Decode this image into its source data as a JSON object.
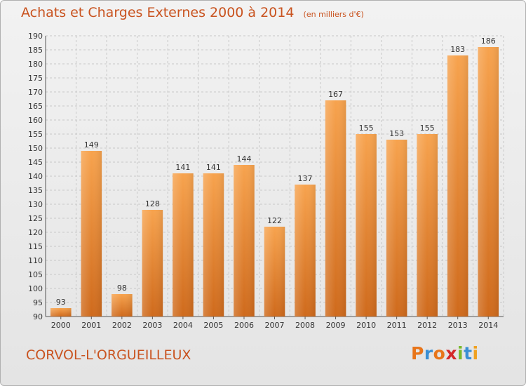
{
  "header": {
    "title": "Achats et Charges Externes 2000 à 2014",
    "subtitle": "(en milliers d'€)"
  },
  "footer": {
    "commune": "CORVOL-L'ORGUEILLEUX",
    "brand": "Proxiti",
    "brand_colors": [
      "#e8751a",
      "#3a8fd4",
      "#e8751a",
      "#d4292a",
      "#7ab92d",
      "#3a8fd4",
      "#f0a11f"
    ]
  },
  "colors": {
    "bar_light": "#f7a34e",
    "bar_dark": "#cf6a1c",
    "title": "#c9531f",
    "axis_text": "#333333",
    "grid": "#c8c8c8"
  },
  "chart_data": {
    "type": "bar",
    "categories": [
      "2000",
      "2001",
      "2002",
      "2003",
      "2004",
      "2005",
      "2006",
      "2007",
      "2008",
      "2009",
      "2010",
      "2011",
      "2012",
      "2013",
      "2014"
    ],
    "values": [
      93,
      149,
      98,
      128,
      141,
      141,
      144,
      122,
      137,
      167,
      155,
      153,
      155,
      183,
      186
    ],
    "ylim": [
      90,
      190
    ],
    "ytick_step": 5,
    "grid": true
  }
}
